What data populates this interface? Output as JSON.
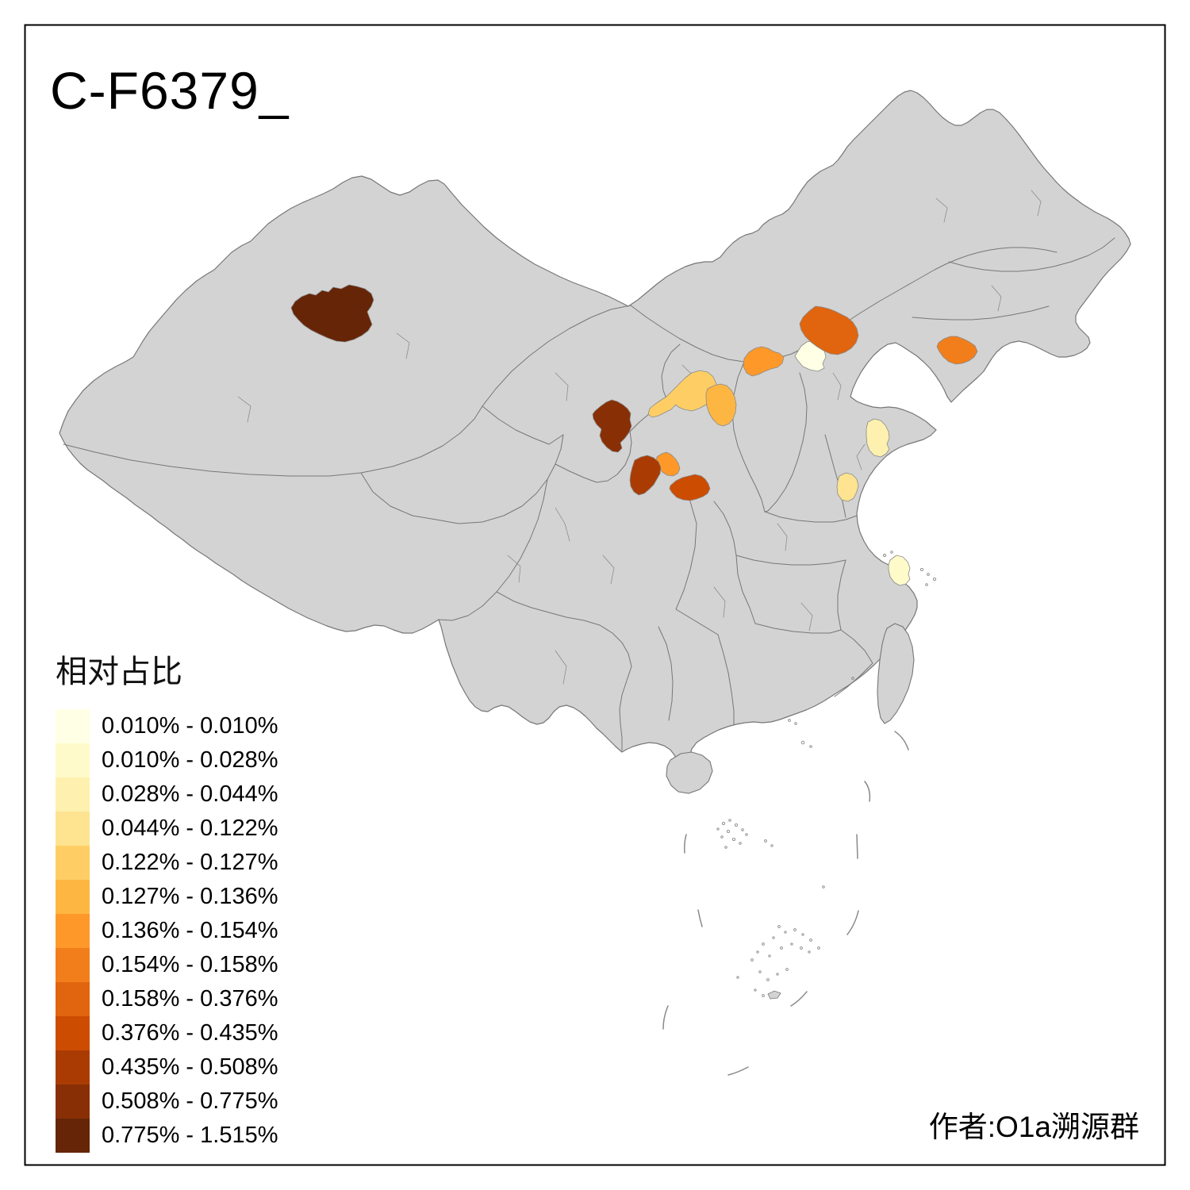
{
  "title": "C-F6379_",
  "attribution": "作者:O1a溯源群",
  "legend": {
    "title": "相对占比",
    "classes": [
      {
        "label": "0.010% - 0.010%",
        "color": "#FFFFE5"
      },
      {
        "label": "0.010% - 0.028%",
        "color": "#FFFACA"
      },
      {
        "label": "0.028% - 0.044%",
        "color": "#FEF0AE"
      },
      {
        "label": "0.044% - 0.122%",
        "color": "#FEE391"
      },
      {
        "label": "0.122% - 0.127%",
        "color": "#FECE65"
      },
      {
        "label": "0.127% - 0.136%",
        "color": "#FEB642"
      },
      {
        "label": "0.136% - 0.154%",
        "color": "#FE9929"
      },
      {
        "label": "0.154% - 0.158%",
        "color": "#F27E1B"
      },
      {
        "label": "0.158% - 0.376%",
        "color": "#E1640E"
      },
      {
        "label": "0.376% - 0.435%",
        "color": "#CC4C02"
      },
      {
        "label": "0.435% - 0.508%",
        "color": "#AA3C03"
      },
      {
        "label": "0.508% - 0.775%",
        "color": "#882F05"
      },
      {
        "label": "0.775% - 1.515%",
        "color": "#662506"
      }
    ]
  },
  "map": {
    "land_color": "#D3D3D3",
    "border_color": "#777777",
    "frame_color": "#000000",
    "regions": [
      {
        "id": "r1",
        "color": "#FFFFE5",
        "range": "0.010% - 0.010%"
      },
      {
        "id": "r2",
        "color": "#FFFACA",
        "range": "0.010% - 0.028%"
      },
      {
        "id": "r3",
        "color": "#FEF0AE",
        "range": "0.028% - 0.044%"
      },
      {
        "id": "r4",
        "color": "#FEE391",
        "range": "0.044% - 0.122%"
      },
      {
        "id": "r5",
        "color": "#FECE65",
        "range": "0.122% - 0.127%"
      },
      {
        "id": "r6",
        "color": "#FEB642",
        "range": "0.127% - 0.136%"
      },
      {
        "id": "r7",
        "color": "#FE9929",
        "range": "0.136% - 0.154%"
      },
      {
        "id": "r8",
        "color": "#FE9929",
        "range": "0.136% - 0.154%"
      },
      {
        "id": "r9",
        "color": "#F27E1B",
        "range": "0.154% - 0.158%"
      },
      {
        "id": "r10",
        "color": "#E1640E",
        "range": "0.158% - 0.376%"
      },
      {
        "id": "r11",
        "color": "#CC4C02",
        "range": "0.376% - 0.435%"
      },
      {
        "id": "r12",
        "color": "#AA3C03",
        "range": "0.435% - 0.508%"
      },
      {
        "id": "r13",
        "color": "#882F05",
        "range": "0.508% - 0.775%"
      },
      {
        "id": "r14",
        "color": "#662506",
        "range": "0.775% - 1.515%"
      }
    ]
  }
}
